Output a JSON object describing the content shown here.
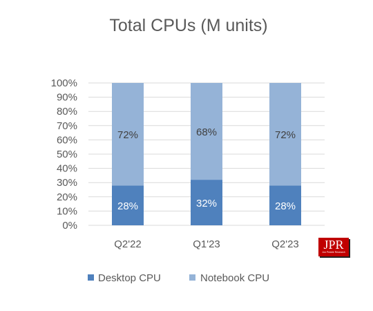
{
  "chart_data": {
    "type": "bar",
    "stacked": true,
    "percent": true,
    "title": "Total CPUs (M units)",
    "categories": [
      "Q2'22",
      "Q1'23",
      "Q2'23"
    ],
    "series": [
      {
        "name": "Desktop CPU",
        "values": [
          28,
          32,
          28
        ],
        "labels": [
          "28%",
          "32%",
          "28%"
        ],
        "color": "#4f81bd",
        "label_color": "#ffffff"
      },
      {
        "name": "Notebook CPU",
        "values": [
          72,
          68,
          72
        ],
        "labels": [
          "72%",
          "68%",
          "72%"
        ],
        "color": "#95b3d7",
        "label_color": "#404040"
      }
    ],
    "ylim": [
      0,
      100
    ],
    "yticks": [
      "0%",
      "10%",
      "20%",
      "30%",
      "40%",
      "50%",
      "60%",
      "70%",
      "80%",
      "90%",
      "100%"
    ],
    "grid": true,
    "legend_position": "bottom",
    "xlabel": "",
    "ylabel": ""
  },
  "logo": {
    "letters": "JPR",
    "subtitle": "Jon Peddie Research"
  }
}
